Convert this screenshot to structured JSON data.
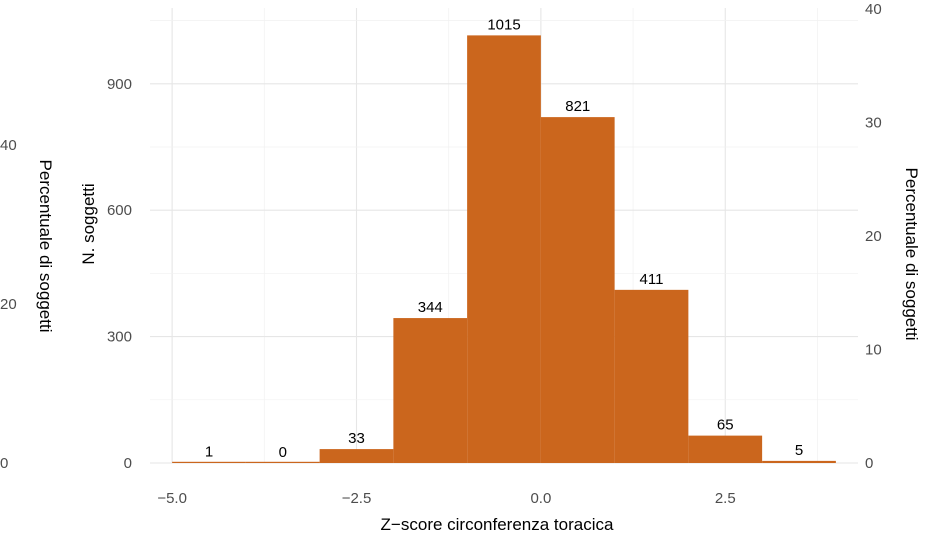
{
  "chart_data": {
    "type": "bar",
    "subtype": "histogram",
    "xlabel": "Z−score circonferenza toracica",
    "ylabel": "N. soggetti",
    "y2label": "Percentuale di soggetti",
    "bins": [
      {
        "start": -5,
        "end": -4,
        "count": 1,
        "label": "1"
      },
      {
        "start": -4,
        "end": -3,
        "count": 0,
        "label": "0"
      },
      {
        "start": -3,
        "end": -2,
        "count": 33,
        "label": "33"
      },
      {
        "start": -2,
        "end": -1,
        "count": 344,
        "label": "344"
      },
      {
        "start": -1,
        "end": 0,
        "count": 1015,
        "label": "1015"
      },
      {
        "start": 0,
        "end": 1,
        "count": 821,
        "label": "821"
      },
      {
        "start": 1,
        "end": 2,
        "count": 411,
        "label": "411"
      },
      {
        "start": 2,
        "end": 3,
        "count": 65,
        "label": "65"
      },
      {
        "start": 3,
        "end": 4,
        "count": 5,
        "label": "5"
      }
    ],
    "xlim": [
      -5.3,
      4.3
    ],
    "ylim": [
      0,
      1080
    ],
    "x_ticks": [
      -5.0,
      -2.5,
      0.0,
      2.5
    ],
    "x_tick_labels": [
      "−5.0",
      "−2.5",
      "0.0",
      "2.5"
    ],
    "y_ticks": [
      0,
      300,
      600,
      900
    ],
    "y_tick_labels": [
      "0",
      "300",
      "600",
      "900"
    ],
    "right_ticks": [
      0,
      10,
      20,
      30,
      40
    ],
    "right_tick_labels": [
      "0",
      "10",
      "20",
      "30",
      "40"
    ],
    "left_secondary_ticks": [
      0,
      20,
      40
    ],
    "left_secondary_tick_labels": [
      "0",
      "20",
      "40"
    ],
    "bar_color": "#cb661d",
    "grid": true
  }
}
